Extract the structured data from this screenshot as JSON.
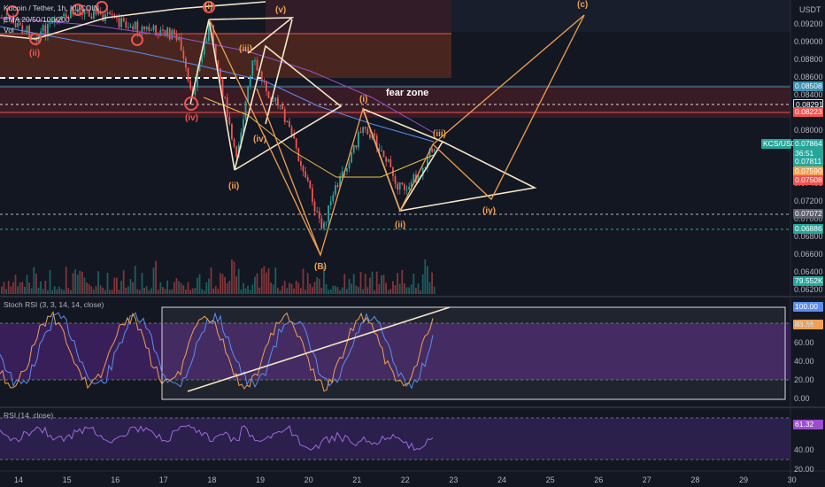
{
  "header": {
    "symbol_line": "Kucoin / Tether, 1h, KUCOIN",
    "ema_line": "EMA 20/50/100/200",
    "vol_line": "Vol"
  },
  "price_axis": {
    "currency": "USDT",
    "ticks": [
      "0.09200",
      "0.09000",
      "0.08800",
      "0.08600",
      "0.08400",
      "0.08200",
      "0.08000",
      "0.07800",
      "0.07600",
      "0.07400",
      "0.07200",
      "0.07000",
      "0.06800",
      "0.06600",
      "0.06400",
      "0.06200"
    ],
    "badges": {
      "level_08508": "0.08508",
      "level_08291": "0.08291",
      "level_08223": "0.08223",
      "symbol": "KCS/USDT",
      "last": "0.07864",
      "countdown": "36:51",
      "ema_a": "0.07811",
      "ema_b": "0.07590",
      "ema_c": "0.07508",
      "level_07072": "0.07072",
      "level_06886": "0.06886",
      "volume": "79.552K"
    }
  },
  "annotations": {
    "fear_zone": "fear zone",
    "waves": {
      "c": "(c)",
      "v": "(v)",
      "i_top": "(i)",
      "i_mid": "(i)",
      "iii_left": "(iii)",
      "iv_left": "(iv)",
      "ii_left": "(ii)",
      "B": "(B)",
      "iii_right": "(iii)",
      "ii_right": "(ii)",
      "iv_right": "(iv)",
      "ii_topleft": "(ii)",
      "iv_topleft": "(iv)"
    }
  },
  "stoch_rsi": {
    "title": "Stoch RSI (3, 3, 14, 14, close)",
    "ticks": [
      "80.00",
      "60.00",
      "40.00",
      "20.00",
      "0.00"
    ],
    "badges": {
      "k": "100.00",
      "d": "83.36"
    }
  },
  "rsi": {
    "title": "RSI (14, close)",
    "ticks": [
      "40.00",
      "20.00"
    ],
    "badge": "61.32"
  },
  "time_axis": {
    "ticks": [
      "14",
      "15",
      "16",
      "17",
      "18",
      "19",
      "20",
      "21",
      "22",
      "23",
      "24",
      "25",
      "26",
      "27",
      "28",
      "29",
      "30"
    ]
  },
  "colors": {
    "background": "#131722",
    "up": "#26a69a",
    "down": "#ef5350",
    "wave_lines": "#ffffff",
    "projection": "#f0a050",
    "rsi_band": "#5b2c8a"
  }
}
